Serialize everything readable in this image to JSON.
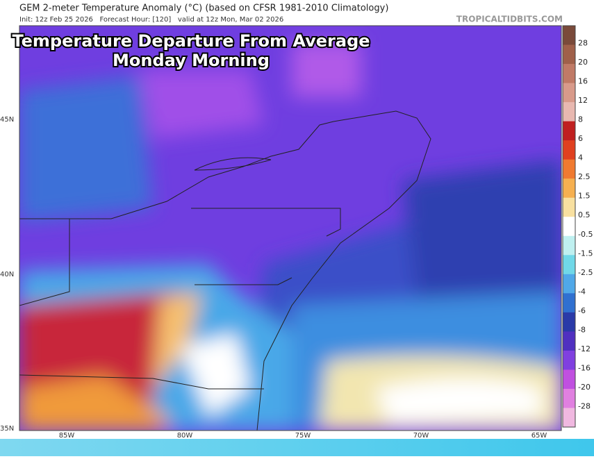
{
  "header": {
    "title": "GEM 2-meter Temperature Anomaly (°C) (based on CFSR 1981-2010 Climatology)",
    "init": "Init: 12z Feb 25 2026   Forecast Hour: [120]   valid at 12z Mon, Mar 02 2026",
    "site": "TROPICALTIDBITS.COM"
  },
  "overlay": {
    "line1": "Temperature Departure From Average",
    "line2": "Monday Morning"
  },
  "map": {
    "lat_labels": [
      "45N",
      "40N",
      "35N"
    ],
    "lon_labels": [
      "85W",
      "80W",
      "75W",
      "70W",
      "65W"
    ]
  },
  "colorbar": {
    "labels": [
      28,
      20,
      16,
      12,
      8,
      6,
      4,
      2.5,
      1.5,
      0.5,
      -0.5,
      -1.5,
      -2.5,
      -4,
      -6,
      -8,
      -12,
      -16,
      -20,
      -28
    ]
  }
}
